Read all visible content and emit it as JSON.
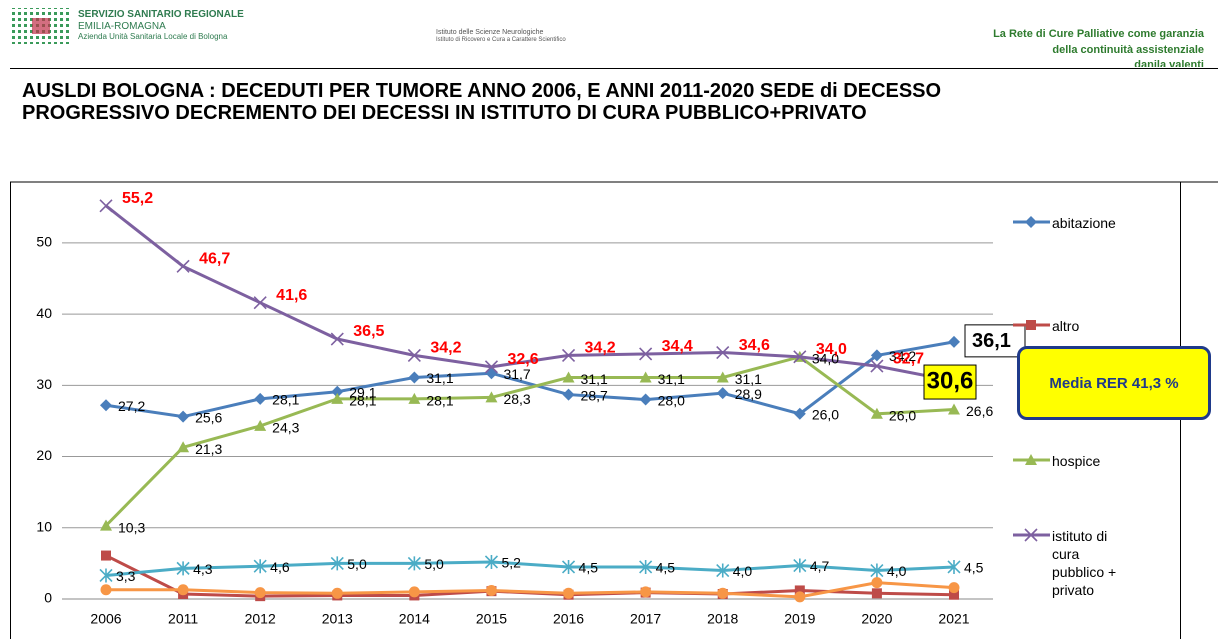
{
  "header": {
    "org": [
      "SERVIZIO SANITARIO REGIONALE",
      "EMILIA-ROMAGNA",
      "Azienda Unità Sanitaria Locale di Bologna"
    ],
    "institute": [
      "Istituto delle Scienze Neurologiche",
      "Istituto di Ricovero e Cura a Carattere Scientifico"
    ],
    "right": [
      "La Rete di Cure Palliative come garanzia",
      "della continuità assistenziale",
      "danila valenti"
    ]
  },
  "chart_data": {
    "type": "line",
    "title": [
      "AUSLDI BOLOGNA :  DECEDUTI PER TUMORE  ANNO 2006, E ANNI 2011-2020 SEDE di DECESSO",
      "PROGRESSIVO DECREMENTO DEI DECESSI IN ISTITUTO DI CURA PUBBLICO+PRIVATO"
    ],
    "categories": [
      "2006",
      "2011",
      "2012",
      "2013",
      "2014",
      "2015",
      "2016",
      "2017",
      "2018",
      "2019",
      "2020",
      "2021"
    ],
    "ylim": [
      0,
      57
    ],
    "yticks": [
      0,
      10,
      20,
      30,
      40,
      50
    ],
    "grid": true,
    "legend": "right",
    "annotation": "Media RER 41,3 %",
    "series": [
      {
        "name": "abitazione",
        "color": "#4a7ebb",
        "marker": "diamond",
        "values": [
          27.2,
          25.6,
          28.1,
          29.1,
          31.1,
          31.7,
          28.7,
          28.0,
          28.9,
          26.0,
          34.2,
          36.1
        ],
        "value_labels": [
          "27,2",
          "25,6",
          "28,1",
          "29,1",
          "31,1",
          "31,7",
          "28,7",
          "28,0",
          "28,9",
          "26,0",
          "34,2",
          "36,1"
        ]
      },
      {
        "name": "altro",
        "color": "#be4b48",
        "marker": "square",
        "values": [
          6.1,
          0.7,
          0.4,
          0.5,
          0.5,
          1.1,
          0.6,
          0.9,
          0.7,
          1.2,
          0.8,
          0.6
        ]
      },
      {
        "name": "hospice",
        "color": "#98b954",
        "marker": "triangle",
        "values": [
          10.3,
          21.3,
          24.3,
          28.1,
          28.1,
          28.3,
          31.1,
          31.1,
          31.1,
          34.0,
          26.0,
          26.6
        ],
        "value_labels": [
          "10,3",
          "21,3",
          "24,3",
          "28,1",
          "28,1",
          "28,3",
          "31,1",
          "31,1",
          "31,1",
          "34,0",
          "26,0",
          "26,6"
        ]
      },
      {
        "name": "istituto di cura pubblico + privato",
        "color": "#7d60a0",
        "marker": "x",
        "values": [
          55.2,
          46.7,
          41.6,
          36.5,
          34.2,
          32.6,
          34.2,
          34.4,
          34.6,
          34.0,
          32.7,
          30.6
        ],
        "value_labels": [
          "55,2",
          "46,7",
          "41,6",
          "36,5",
          "34,2",
          "32,6",
          "34,2",
          "34,4",
          "34,6",
          "34,0",
          "32,7",
          "30,6"
        ]
      },
      {
        "color": "#4bacc6",
        "marker": "star",
        "values": [
          3.3,
          4.3,
          4.6,
          5.0,
          5.0,
          5.2,
          4.5,
          4.5,
          4.0,
          4.7,
          4.0,
          4.5
        ],
        "value_labels": [
          "3,3",
          "4,3",
          "4,6",
          "5,0",
          "5,0",
          "5,2",
          "4,5",
          "4,5",
          "4,0",
          "4,7",
          "4,0",
          "4,5"
        ]
      },
      {
        "color": "#f79646",
        "marker": "circle",
        "values": [
          1.3,
          1.3,
          0.9,
          0.8,
          1.0,
          1.2,
          0.8,
          1.0,
          0.8,
          0.3,
          2.3,
          1.6
        ]
      }
    ]
  }
}
